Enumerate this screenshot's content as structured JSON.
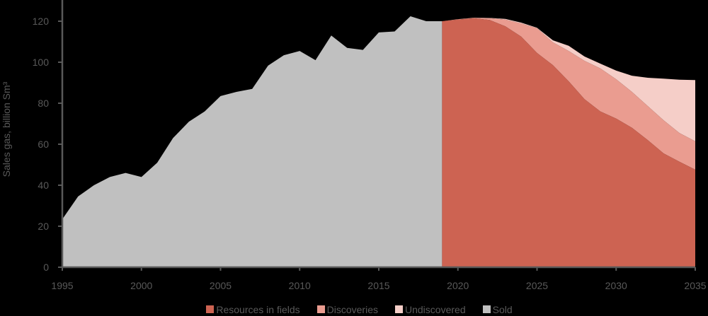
{
  "chart_data": {
    "type": "area",
    "stacked": true,
    "title": "",
    "xlabel": "",
    "ylabel": "Sales gas, billion Sm³",
    "xlim": [
      1995,
      2035
    ],
    "ylim": [
      0,
      120
    ],
    "x_ticks": [
      1995,
      2000,
      2005,
      2010,
      2015,
      2020,
      2025,
      2030,
      2035
    ],
    "y_ticks": [
      0,
      20,
      40,
      60,
      80,
      100,
      120
    ],
    "grid": false,
    "legend_position": "bottom",
    "colors": {
      "resources": "#CD6352",
      "discoveries": "#EA9C90",
      "undiscovered": "#F5CEC8",
      "sold": "#C0C0C0"
    },
    "series": [
      {
        "key": "sold",
        "name": "Sold",
        "x": [
          1995,
          1996,
          1997,
          1998,
          1999,
          2000,
          2001,
          2002,
          2003,
          2004,
          2005,
          2006,
          2007,
          2008,
          2009,
          2010,
          2011,
          2012,
          2013,
          2014,
          2015,
          2016,
          2017,
          2018,
          2019
        ],
        "values": [
          23.4,
          34.5,
          40,
          44,
          46,
          44,
          51,
          63,
          71,
          76,
          83.5,
          85.5,
          87,
          98.3,
          103.4,
          105.5,
          101,
          113,
          107,
          106,
          114.5,
          115,
          122.4,
          120,
          120
        ]
      },
      {
        "key": "resources",
        "name": "Resources in fields",
        "x": [
          2019,
          2020,
          2021,
          2022,
          2023,
          2024,
          2025,
          2026,
          2027,
          2028,
          2029,
          2030,
          2031,
          2032,
          2033,
          2034,
          2035
        ],
        "values": [
          120,
          120.8,
          121.4,
          120.6,
          117.5,
          112.5,
          104.5,
          98.6,
          90.7,
          82,
          76,
          72.5,
          68,
          62,
          55.5,
          51.5,
          47.6
        ]
      },
      {
        "key": "discoveries",
        "name": "Discoveries",
        "x": [
          2019,
          2020,
          2021,
          2022,
          2023,
          2024,
          2025,
          2026,
          2027,
          2028,
          2029,
          2030,
          2031,
          2032,
          2033,
          2034,
          2035
        ],
        "values": [
          0,
          0.2,
          0.3,
          0.9,
          3.3,
          6.4,
          12.1,
          11.1,
          14.8,
          18.7,
          21,
          19.2,
          17.5,
          16.6,
          16.2,
          14,
          13.8
        ]
      },
      {
        "key": "undiscovered",
        "name": "Undiscovered",
        "x": [
          2019,
          2020,
          2021,
          2022,
          2023,
          2024,
          2025,
          2026,
          2027,
          2028,
          2029,
          2030,
          2031,
          2032,
          2033,
          2034,
          2035
        ],
        "values": [
          0,
          0,
          0,
          0.1,
          0.3,
          0.4,
          0.2,
          1,
          2.5,
          2.1,
          2.3,
          4.2,
          7.9,
          13.8,
          20.3,
          26,
          29.9
        ]
      }
    ]
  },
  "axis": {
    "y_title": "Sales gas, billion Sm³",
    "y_tick_labels": [
      "0",
      "20",
      "40",
      "60",
      "80",
      "100",
      "120"
    ],
    "x_tick_labels": [
      "1995",
      "2000",
      "2005",
      "2010",
      "2015",
      "2020",
      "2025",
      "2030",
      "2035"
    ]
  },
  "legend": {
    "items": [
      {
        "label": "Resources in fields",
        "color": "#CD6352"
      },
      {
        "label": "Discoveries",
        "color": "#EA9C90"
      },
      {
        "label": "Undiscovered",
        "color": "#F5CEC8"
      },
      {
        "label": "Sold",
        "color": "#C0C0C0"
      }
    ]
  }
}
